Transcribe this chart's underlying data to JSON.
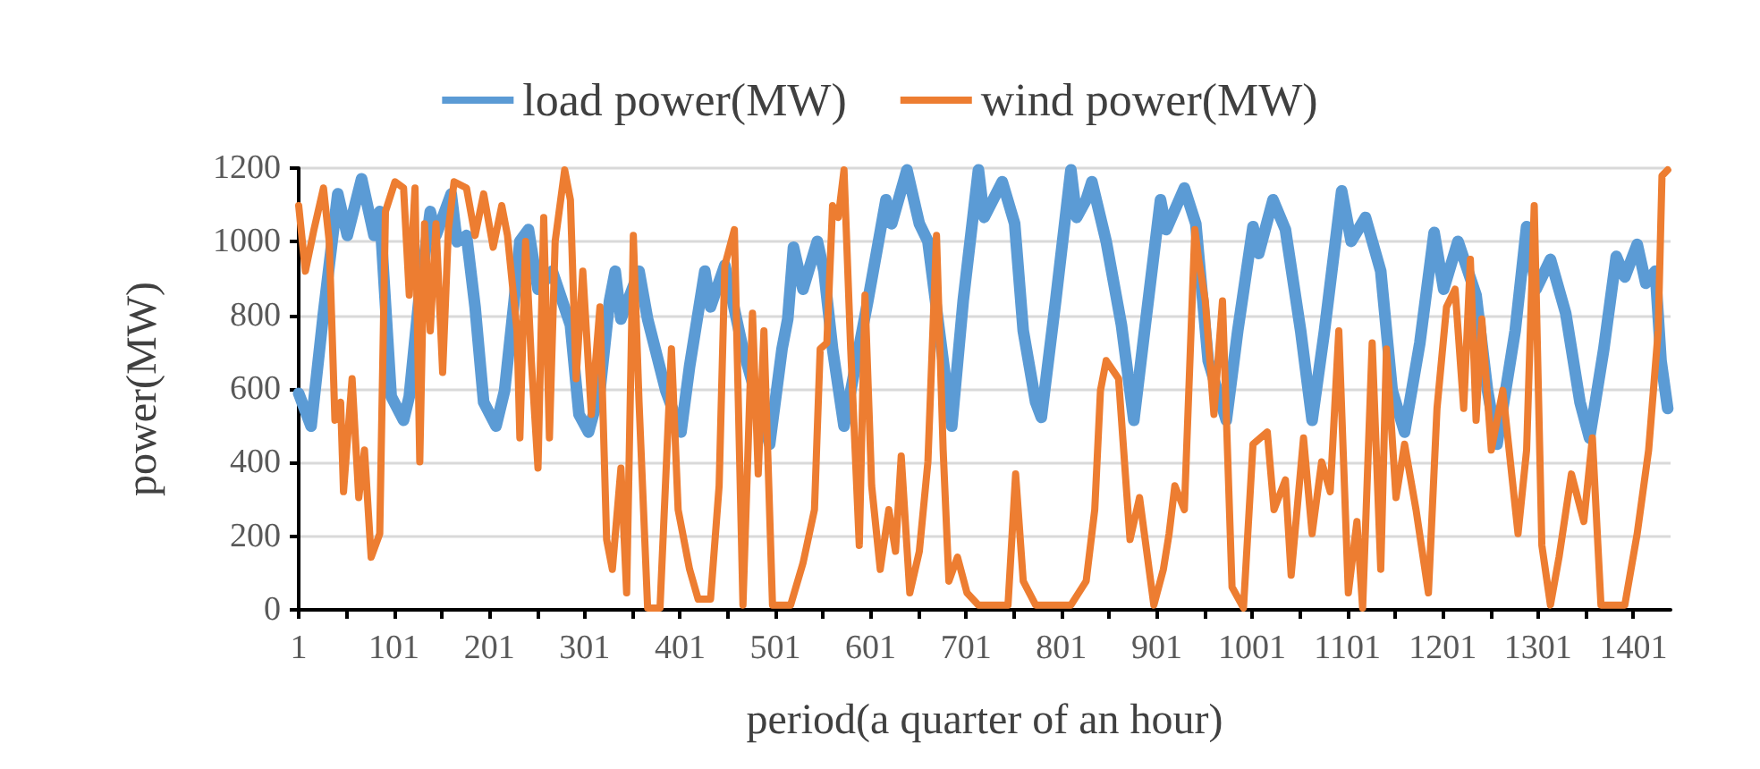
{
  "chart_data": {
    "type": "line",
    "xlabel": "period(a quarter of an hour)",
    "ylabel": "power(MW)",
    "xlim": [
      1,
      1440
    ],
    "xticks": [
      1,
      {
        "value": 51,
        "label": null
      },
      101,
      {
        "value": 151,
        "label": null
      },
      201,
      {
        "value": 251,
        "label": null
      },
      301,
      {
        "value": 351,
        "label": null
      },
      401,
      {
        "value": 451,
        "label": null
      },
      501,
      {
        "value": 551,
        "label": null
      },
      601,
      {
        "value": 651,
        "label": null
      },
      701,
      {
        "value": 751,
        "label": null
      },
      801,
      {
        "value": 851,
        "label": null
      },
      901,
      {
        "value": 951,
        "label": null
      },
      1001,
      {
        "value": 1051,
        "label": null
      },
      1101,
      {
        "value": 1151,
        "label": null
      },
      1201,
      {
        "value": 1251,
        "label": null
      },
      1301,
      {
        "value": 1351,
        "label": null
      },
      1401
    ],
    "ylim": [
      0,
      1200
    ],
    "yticks": [
      0,
      200,
      400,
      600,
      800,
      1000,
      1200
    ],
    "grid": "y",
    "legend": "top",
    "marker": "none",
    "line_style": "solid",
    "series": [
      {
        "name": "load power(MW)",
        "color": "#5b9bd5",
        "x": [
          1,
          14,
          27,
          42,
          52,
          67,
          80,
          86,
          98,
          111,
          117,
          127,
          139,
          145,
          161,
          167,
          177,
          186,
          195,
          208,
          217,
          227,
          233,
          242,
          252,
          267,
          286,
          295,
          305,
          317,
          327,
          333,
          339,
          358,
          367,
          386,
          402,
          411,
          427,
          433,
          448,
          467,
          495,
          508,
          514,
          520,
          530,
          545,
          552,
          561,
          573,
          598,
          617,
          623,
          639,
          652,
          661,
          677,
          686,
          698,
          714,
          720,
          739,
          752,
          761,
          774,
          780,
          795,
          811,
          817,
          827,
          833,
          848,
          864,
          877,
          889,
          905,
          911,
          930,
          942,
          955,
          974,
          986,
          1002,
          1008,
          1023,
          1036,
          1052,
          1064,
          1077,
          1095,
          1105,
          1120,
          1136,
          1148,
          1161,
          1177,
          1192,
          1202,
          1217,
          1236,
          1248,
          1258,
          1277,
          1289,
          1299,
          1314,
          1330,
          1345,
          1355,
          1370,
          1383,
          1392,
          1405,
          1414,
          1424,
          1430,
          1437
        ],
        "values": [
          588,
          499,
          806,
          1130,
          1017,
          1171,
          1017,
          1082,
          580,
          515,
          580,
          839,
          1082,
          1017,
          1130,
          1000,
          1017,
          823,
          564,
          499,
          596,
          839,
          1001,
          1033,
          871,
          920,
          774,
          531,
          483,
          596,
          839,
          920,
          790,
          920,
          790,
          596,
          483,
          661,
          920,
          823,
          936,
          709,
          450,
          709,
          790,
          985,
          871,
          1001,
          920,
          709,
          499,
          839,
          1114,
          1049,
          1195,
          1049,
          1001,
          677,
          499,
          839,
          1195,
          1066,
          1163,
          1049,
          758,
          564,
          523,
          839,
          1195,
          1066,
          1114,
          1163,
          1001,
          774,
          515,
          774,
          1114,
          1033,
          1146,
          1049,
          677,
          515,
          758,
          1041,
          968,
          1114,
          1033,
          758,
          515,
          758,
          1138,
          1001,
          1066,
          920,
          596,
          483,
          725,
          1025,
          871,
          1001,
          855,
          596,
          450,
          758,
          1041,
          871,
          952,
          806,
          564,
          467,
          709,
          960,
          904,
          993,
          887,
          920,
          677,
          547
        ]
      },
      {
        "name": "wind power(MW)",
        "color": "#ed7d31",
        "x": [
          1,
          8,
          17,
          27,
          33,
          39,
          45,
          48,
          57,
          64,
          70,
          77,
          86,
          92,
          102,
          111,
          117,
          123,
          128,
          133,
          139,
          145,
          152,
          158,
          164,
          177,
          186,
          195,
          205,
          214,
          220,
          230,
          233,
          239,
          245,
          252,
          258,
          264,
          270,
          280,
          286,
          292,
          299,
          308,
          317,
          324,
          330,
          339,
          345,
          352,
          358,
          367,
          380,
          392,
          399,
          411,
          420,
          433,
          442,
          448,
          458,
          467,
          477,
          483,
          489,
          498,
          517,
          530,
          542,
          548,
          555,
          561,
          567,
          573,
          580,
          589,
          595,
          602,
          611,
          620,
          627,
          633,
          642,
          652,
          661,
          670,
          677,
          683,
          692,
          702,
          714,
          745,
          753,
          761,
          774,
          811,
          827,
          836,
          842,
          848,
          861,
          873,
          883,
          898,
          908,
          914,
          920,
          930,
          941,
          945,
          952,
          961,
          970,
          980,
          992,
          1002,
          1017,
          1024,
          1036,
          1042,
          1055,
          1064,
          1074,
          1083,
          1092,
          1102,
          1111,
          1117,
          1127,
          1136,
          1142,
          1152,
          1161,
          1173,
          1186,
          1195,
          1205,
          1214,
          1223,
          1230,
          1236,
          1242,
          1252,
          1264,
          1280,
          1289,
          1297,
          1305,
          1314,
          1323,
          1336,
          1349,
          1358,
          1367,
          1392,
          1405,
          1417,
          1427,
          1431,
          1437
        ],
        "values": [
          1098,
          920,
          1033,
          1146,
          1001,
          515,
          564,
          321,
          628,
          305,
          434,
          143,
          207,
          1082,
          1163,
          1146,
          855,
          1146,
          402,
          1049,
          758,
          1049,
          645,
          1033,
          1163,
          1146,
          1017,
          1130,
          985,
          1098,
          1017,
          758,
          467,
          1001,
          677,
          385,
          1066,
          467,
          1001,
          1195,
          1114,
          628,
          920,
          531,
          823,
          191,
          110,
          385,
          46,
          1017,
          564,
          5,
          5,
          709,
          272,
          110,
          29,
          29,
          337,
          936,
          1033,
          13,
          806,
          369,
          758,
          13,
          13,
          127,
          272,
          709,
          725,
          1098,
          1066,
          1195,
          709,
          175,
          855,
          337,
          110,
          272,
          159,
          418,
          46,
          159,
          402,
          1017,
          434,
          78,
          143,
          46,
          13,
          13,
          369,
          78,
          13,
          13,
          78,
          272,
          596,
          677,
          628,
          191,
          305,
          13,
          110,
          207,
          337,
          272,
          1033,
          952,
          839,
          531,
          839,
          62,
          5,
          450,
          483,
          272,
          353,
          94,
          467,
          207,
          402,
          321,
          758,
          46,
          240,
          5,
          725,
          110,
          709,
          305,
          450,
          272,
          46,
          547,
          823,
          871,
          547,
          952,
          515,
          790,
          434,
          596,
          207,
          434,
          1098,
          175,
          13,
          143,
          369,
          240,
          467,
          13,
          13,
          207,
          434,
          758,
          1179,
          1195
        ]
      }
    ]
  }
}
